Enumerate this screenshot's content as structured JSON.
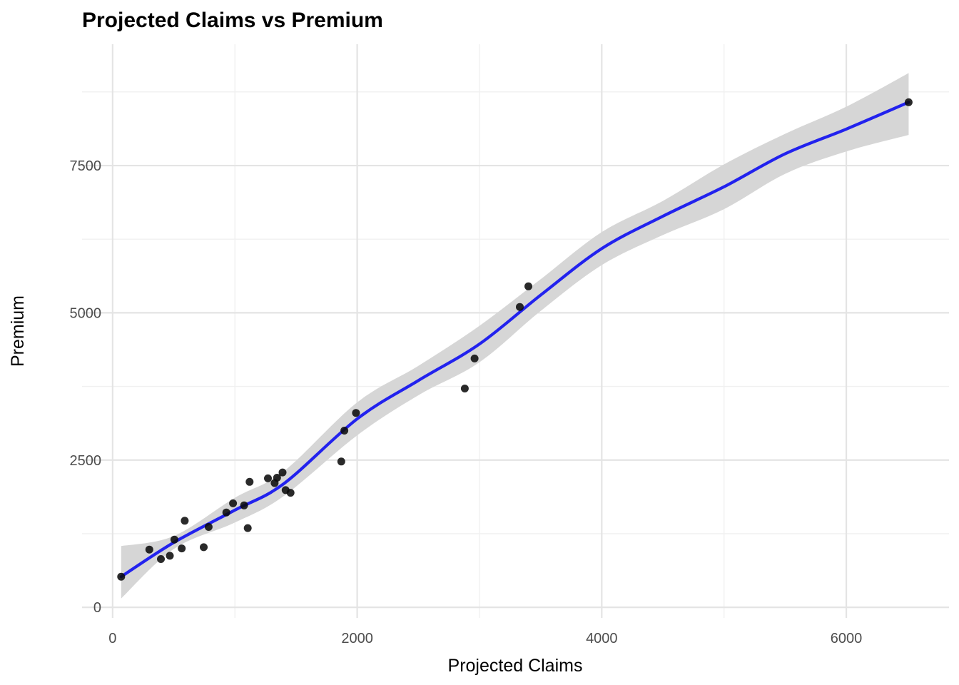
{
  "title": "Projected Claims vs Premium",
  "chart_data": {
    "type": "scatter",
    "title": "Projected Claims vs Premium",
    "xlabel": "Projected Claims",
    "ylabel": "Premium",
    "x_ticks": [
      0,
      2000,
      4000,
      6000
    ],
    "y_ticks": [
      0,
      2500,
      5000,
      7500
    ],
    "x_minor_ticks": [
      1000,
      3000,
      5000
    ],
    "y_minor_ticks": [
      1250,
      3750,
      6250,
      8750
    ],
    "xlim": [
      -250,
      6840
    ],
    "ylim": [
      -180,
      9560
    ],
    "grid": "major+minor",
    "legend": "none",
    "points": [
      [
        70,
        520
      ],
      [
        300,
        980
      ],
      [
        395,
        820
      ],
      [
        468,
        875
      ],
      [
        505,
        1150
      ],
      [
        565,
        1000
      ],
      [
        590,
        1470
      ],
      [
        745,
        1020
      ],
      [
        785,
        1365
      ],
      [
        930,
        1610
      ],
      [
        985,
        1765
      ],
      [
        1075,
        1730
      ],
      [
        1105,
        1345
      ],
      [
        1120,
        2130
      ],
      [
        1270,
        2190
      ],
      [
        1325,
        2110
      ],
      [
        1345,
        2200
      ],
      [
        1390,
        2290
      ],
      [
        1415,
        1990
      ],
      [
        1455,
        1945
      ],
      [
        1870,
        2475
      ],
      [
        1895,
        3000
      ],
      [
        1990,
        3300
      ],
      [
        2880,
        3715
      ],
      [
        2960,
        4225
      ],
      [
        3330,
        5100
      ],
      [
        3400,
        5450
      ],
      [
        6510,
        8575
      ]
    ],
    "smooth_line": [
      [
        70,
        520
      ],
      [
        500,
        1100
      ],
      [
        1000,
        1650
      ],
      [
        1400,
        2100
      ],
      [
        2000,
        3200
      ],
      [
        2500,
        3850
      ],
      [
        3000,
        4470
      ],
      [
        3500,
        5300
      ],
      [
        4000,
        6090
      ],
      [
        4500,
        6640
      ],
      [
        5000,
        7140
      ],
      [
        5500,
        7700
      ],
      [
        6000,
        8120
      ],
      [
        6510,
        8575
      ]
    ],
    "ci_band": {
      "x": [
        70,
        500,
        1000,
        1400,
        2000,
        2500,
        3000,
        3500,
        4000,
        4500,
        5000,
        5500,
        6000,
        6510
      ],
      "upper": [
        1040,
        1210,
        1860,
        2310,
        3480,
        4100,
        4780,
        5570,
        6370,
        6900,
        7520,
        8040,
        8500,
        9070
      ],
      "lower": [
        150,
        990,
        1440,
        1890,
        2920,
        3600,
        4160,
        5030,
        5810,
        6320,
        6760,
        7360,
        7740,
        8020
      ]
    },
    "colors": {
      "point": "rgba(10,10,10,0.87)",
      "line": "#2222EE",
      "band": "#D6D6D6",
      "grid_major": "#E4E4E4",
      "grid_minor": "#F0F0F0",
      "tick_label": "#4d4d4d",
      "axis_title": "#000000",
      "title": "#000000",
      "background": "#FFFFFF"
    }
  }
}
